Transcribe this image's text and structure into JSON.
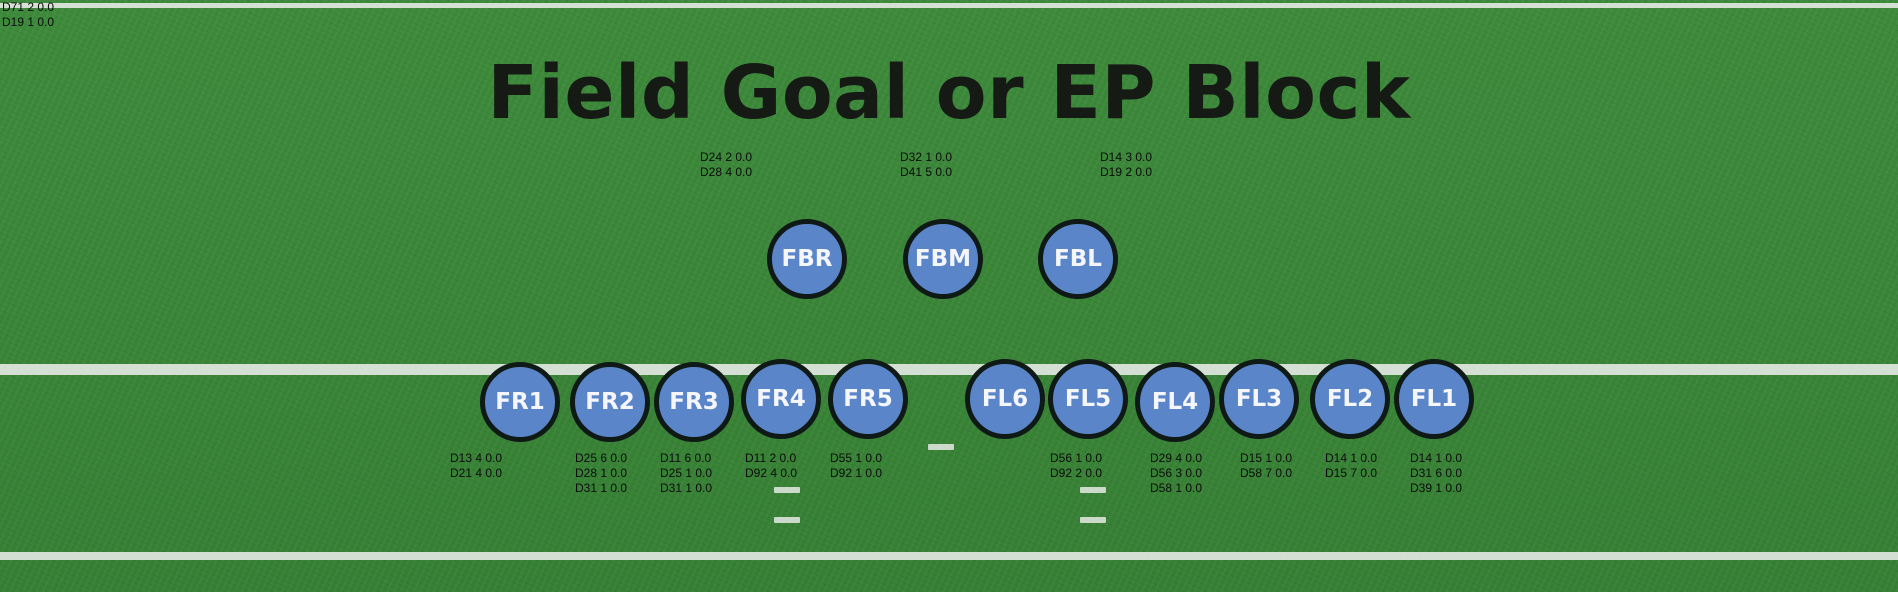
{
  "title": "Field Goal or EP Block",
  "corner_lines": [
    "D71 2 0.0",
    "D19 1 0.0"
  ],
  "players": [
    {
      "label": "FBR",
      "stats": [
        "D24 2 0.0",
        "D28 4 0.0"
      ]
    },
    {
      "label": "FBM",
      "stats": [
        "D32 1 0.0",
        "D41 5 0.0"
      ]
    },
    {
      "label": "FBL",
      "stats": [
        "D14 3 0.0",
        "D19 2 0.0"
      ]
    },
    {
      "label": "FR1",
      "stats": [
        "D13 4 0.0",
        "D21 4 0.0"
      ]
    },
    {
      "label": "FR2",
      "stats": [
        "D25 6 0.0",
        "D28 1 0.0",
        "D31 1 0.0"
      ]
    },
    {
      "label": "FR3",
      "stats": [
        "D11 6 0.0",
        "D25 1 0.0",
        "D31 1 0.0"
      ]
    },
    {
      "label": "FR4",
      "stats": [
        "D11 2 0.0",
        "D92 4 0.0"
      ]
    },
    {
      "label": "FR5",
      "stats": [
        "D55 1 0.0",
        "D92 1 0.0"
      ]
    },
    {
      "label": "FL6",
      "stats": []
    },
    {
      "label": "FL5",
      "stats": [
        "D56 1 0.0",
        "D92 2 0.0"
      ]
    },
    {
      "label": "FL4",
      "stats": [
        "D29 4 0.0",
        "D56 3 0.0",
        "D58 1 0.0"
      ]
    },
    {
      "label": "FL3",
      "stats": [
        "D15 1 0.0",
        "D58 7 0.0"
      ]
    },
    {
      "label": "FL2",
      "stats": [
        "D14 1 0.0",
        "D15 7 0.0"
      ]
    },
    {
      "label": "FL1",
      "stats": [
        "D14 1 0.0",
        "D31 6 0.0",
        "D39 1 0.0"
      ]
    }
  ]
}
